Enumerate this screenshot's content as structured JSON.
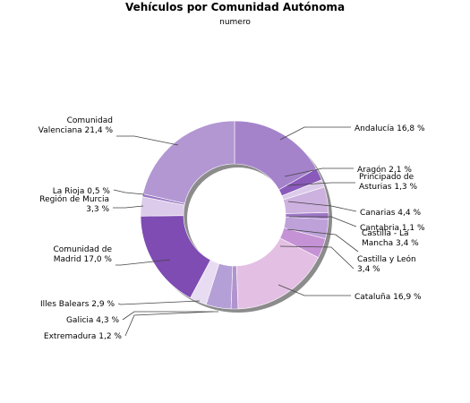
{
  "chart_data": {
    "type": "pie",
    "style": "donut",
    "title": "Vehículos por Comunidad Autónoma",
    "subtitle": "numero",
    "legend": "none",
    "slices": [
      {
        "label": [
          "Andalucía 16,8 %"
        ],
        "value": 16.8,
        "color": "#a583cb"
      },
      {
        "label": [
          "Aragón 2,1 %"
        ],
        "value": 2.1,
        "color": "#8a5abb"
      },
      {
        "label": [
          "Principado de",
          "Asturias 1,3 %"
        ],
        "value": 1.3,
        "color": "#dccbea"
      },
      {
        "label": [
          "Canarias 4,4 %"
        ],
        "value": 4.4,
        "color": "#cdb2e0"
      },
      {
        "label": [
          "Cantabria 1,1 %"
        ],
        "value": 1.1,
        "color": "#9d78c5"
      },
      {
        "label": [
          "Castilla - La",
          "Mancha 3,4 %"
        ],
        "value": 3.4,
        "color": "#bea1d9"
      },
      {
        "label": [
          "Castilla y León",
          "3,4 %"
        ],
        "value": 3.4,
        "color": "#c592d5"
      },
      {
        "label": [
          "Cataluña 16,9 %"
        ],
        "value": 16.9,
        "color": "#e4bfe4"
      },
      {
        "label": [
          "Extremadura 1,2 %"
        ],
        "value": 1.2,
        "color": "#b094ce"
      },
      {
        "label": [
          "Galicia 4,3 %"
        ],
        "value": 4.3,
        "color": "#b59fd7"
      },
      {
        "label": [
          "Illes Balears 2,9 %"
        ],
        "value": 2.9,
        "color": "#e7dcf1"
      },
      {
        "label": [
          "Comunidad de",
          "Madrid 17,0 %"
        ],
        "value": 17.0,
        "color": "#7e4cb2"
      },
      {
        "label": [
          "Región de Murcia",
          "3,3 %"
        ],
        "value": 3.3,
        "color": "#dccbea"
      },
      {
        "label": [
          "La Rioja 0,5 %"
        ],
        "value": 0.5,
        "color": "#9a76c4"
      },
      {
        "label": [
          "Comunidad",
          "Valenciana 21,4 %"
        ],
        "value": 21.4,
        "color": "#b297d2"
      }
    ]
  }
}
